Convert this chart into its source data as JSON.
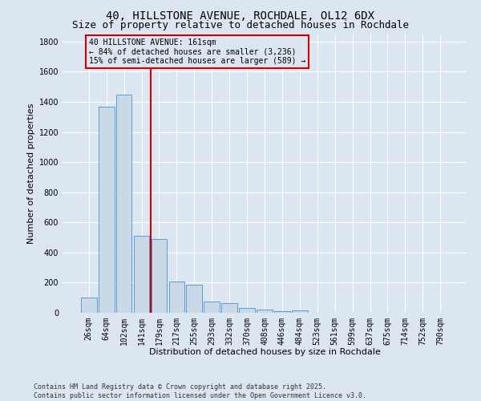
{
  "title": "40, HILLSTONE AVENUE, ROCHDALE, OL12 6DX",
  "subtitle": "Size of property relative to detached houses in Rochdale",
  "xlabel": "Distribution of detached houses by size in Rochdale",
  "ylabel": "Number of detached properties",
  "footer1": "Contains HM Land Registry data © Crown copyright and database right 2025.",
  "footer2": "Contains public sector information licensed under the Open Government Licence v3.0.",
  "annotation_line1": "40 HILLSTONE AVENUE: 161sqm",
  "annotation_line2": "← 84% of detached houses are smaller (3,236)",
  "annotation_line3": "15% of semi-detached houses are larger (589) →",
  "bar_color": "#c9d9e8",
  "bar_edge_color": "#5b9bd5",
  "vline_color": "#cc0000",
  "vline_x": 3.5,
  "background_color": "#dce6f1",
  "categories": [
    "26sqm",
    "64sqm",
    "102sqm",
    "141sqm",
    "179sqm",
    "217sqm",
    "255sqm",
    "293sqm",
    "332sqm",
    "370sqm",
    "408sqm",
    "446sqm",
    "484sqm",
    "523sqm",
    "561sqm",
    "599sqm",
    "637sqm",
    "675sqm",
    "714sqm",
    "752sqm",
    "790sqm"
  ],
  "values": [
    100,
    1370,
    1450,
    510,
    490,
    205,
    185,
    75,
    65,
    30,
    20,
    10,
    15,
    0,
    0,
    0,
    0,
    0,
    0,
    0,
    0
  ],
  "ylim": [
    0,
    1850
  ],
  "yticks": [
    0,
    200,
    400,
    600,
    800,
    1000,
    1200,
    1400,
    1600,
    1800
  ],
  "grid_color": "#ffffff",
  "title_fontsize": 10,
  "subtitle_fontsize": 9,
  "ylabel_fontsize": 8,
  "xlabel_fontsize": 8,
  "tick_fontsize": 7,
  "footer_fontsize": 6
}
